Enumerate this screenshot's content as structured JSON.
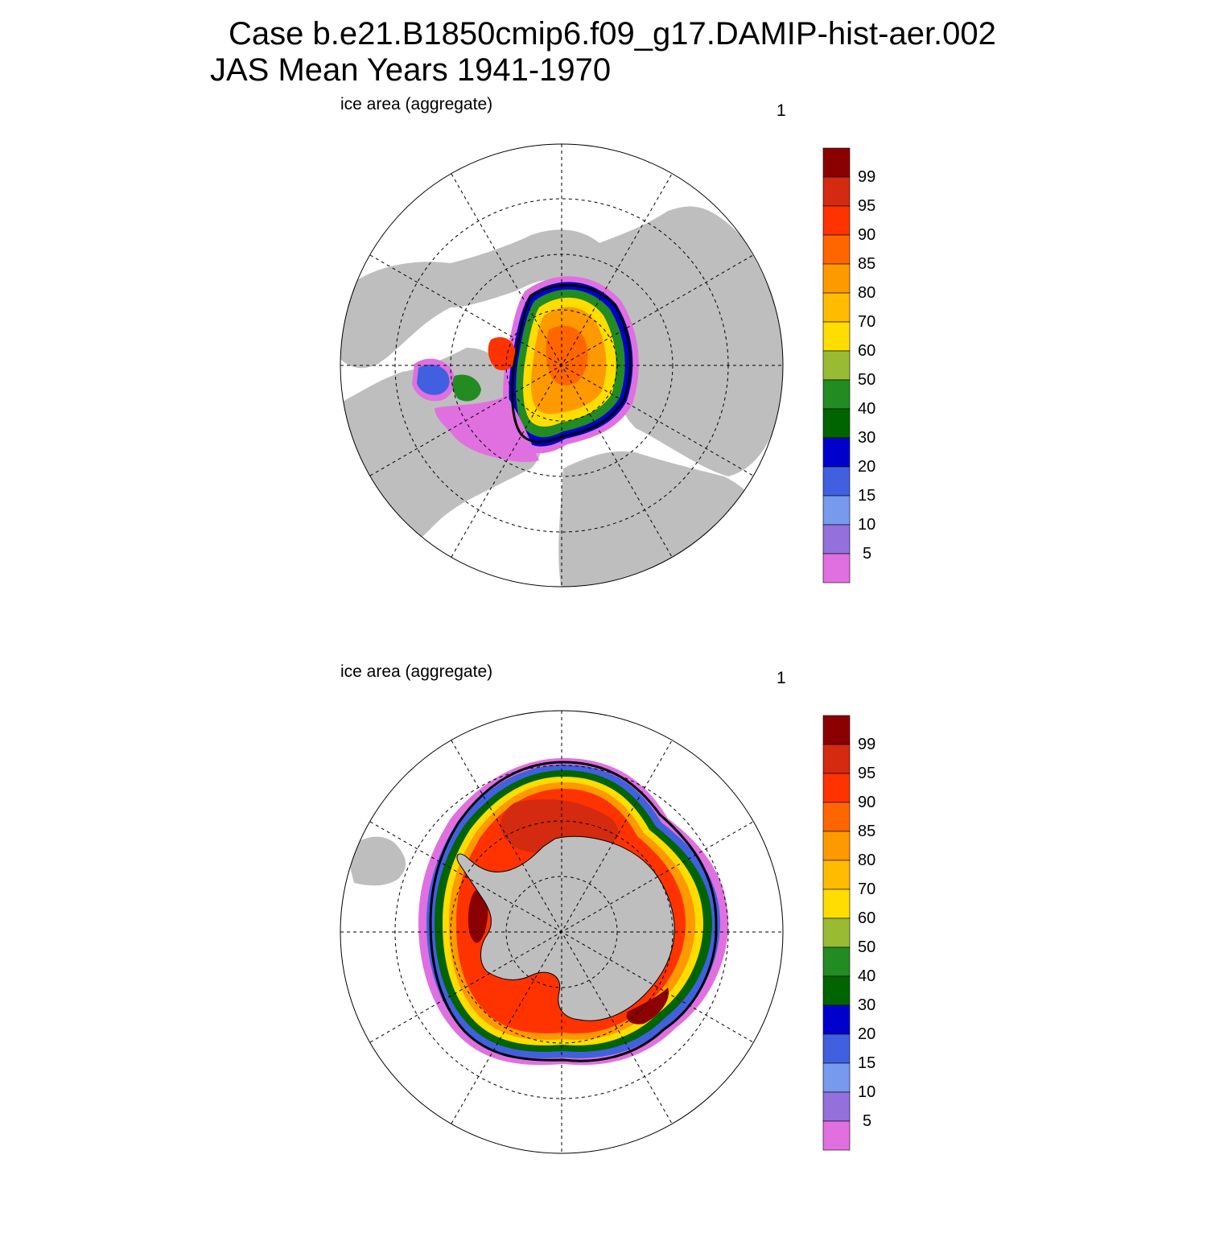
{
  "title": {
    "line1": "Case b.e21.B1850cmip6.f09_g17.DAMIP-hist-aer.002",
    "line2": "JAS Mean   Years 1941-1970"
  },
  "panels": [
    {
      "id": "north",
      "left_label": "ice area  (aggregate)",
      "right_label": "1",
      "hemisphere": "Arctic"
    },
    {
      "id": "south",
      "left_label": "ice area  (aggregate)",
      "right_label": "1",
      "hemisphere": "Antarctic"
    }
  ],
  "colorbar": {
    "labels": [
      "99",
      "95",
      "90",
      "85",
      "80",
      "70",
      "60",
      "50",
      "40",
      "30",
      "20",
      "15",
      "10",
      "5"
    ],
    "colors_top_to_bottom": [
      "#8b0000",
      "#d42a10",
      "#ff3300",
      "#ff6600",
      "#ff9900",
      "#ffbb00",
      "#ffdd00",
      "#99bb33",
      "#228b22",
      "#006400",
      "#0000cc",
      "#4060e0",
      "#7799ee",
      "#9370db",
      "#e070e0"
    ]
  },
  "map_colors": {
    "land": "#bebebe",
    "ocean": "#ffffff",
    "grid": "#000000",
    "ice_edge": "#000000"
  }
}
